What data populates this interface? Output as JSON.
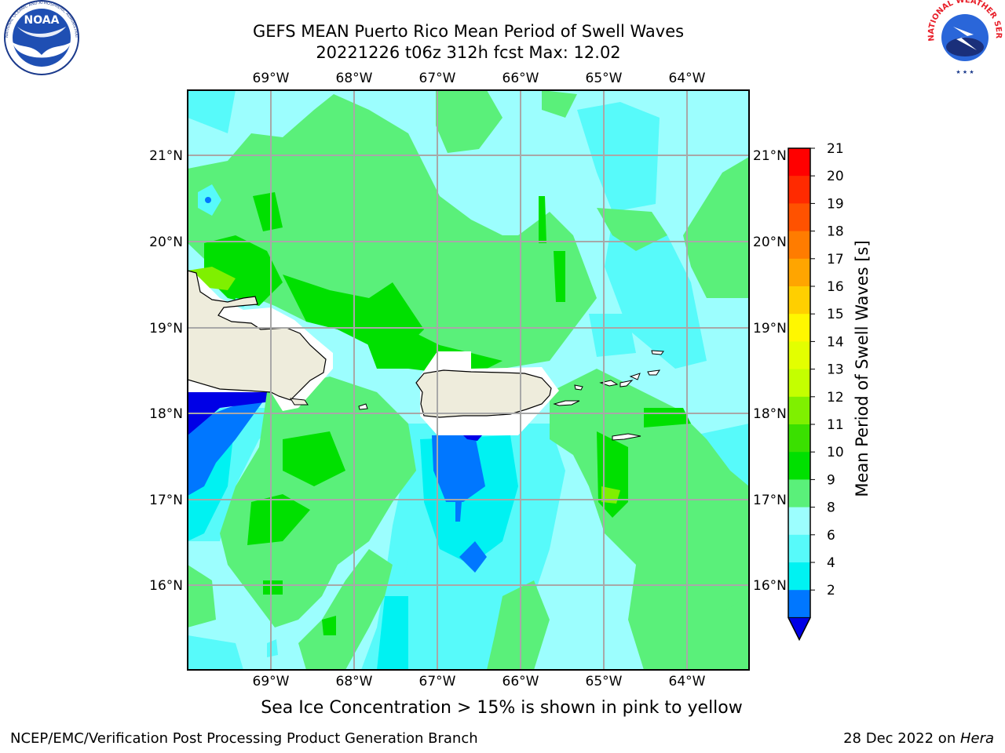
{
  "header": {
    "title_line1": "GEFS MEAN Puerto Rico Mean Period of Swell Waves",
    "title_line2": "20221226 t06z 312h fcst   Max: 12.02"
  },
  "logos": {
    "left_logo_text": "NOAA",
    "left_logo_ring_text": "NATIONAL OCEANIC AND ATMOSPHERIC ADMINISTRATION · U.S. DEPARTMENT OF COMMERCE",
    "right_logo_ring_text": "NATIONAL WEATHER SERVICE"
  },
  "map": {
    "lon_labels": [
      "69°W",
      "68°W",
      "67°W",
      "66°W",
      "65°W",
      "64°W"
    ],
    "lat_labels": [
      "21°N",
      "20°N",
      "19°N",
      "18°N",
      "17°N",
      "16°N"
    ],
    "colors": {
      "land": "#eeecdc",
      "ocean_background": "#9cfefe"
    }
  },
  "colorbar": {
    "label": "Mean Period of Swell Waves [s]",
    "ticks": [
      "21",
      "20",
      "19",
      "18",
      "17",
      "16",
      "15",
      "14",
      "13",
      "12",
      "11",
      "10",
      "9",
      "8",
      "6",
      "4",
      "2"
    ],
    "colors": [
      "#ff0000",
      "#ff2a00",
      "#ff5200",
      "#ff7c00",
      "#ffa500",
      "#ffcf00",
      "#fff700",
      "#e3ff00",
      "#c4ff00",
      "#7ff000",
      "#3ae000",
      "#00e000",
      "#5af07a",
      "#9cfefe",
      "#57fafa",
      "#00f2f2",
      "#0077ff"
    ],
    "under_color": "#0000e6"
  },
  "note": "Sea Ice Concentration > 15% is shown in pink to yellow",
  "footer": {
    "left": "NCEP/EMC/Verification Post Processing Product Generation Branch",
    "right_date": "28 Dec 2022 on ",
    "right_host": "Hera"
  }
}
